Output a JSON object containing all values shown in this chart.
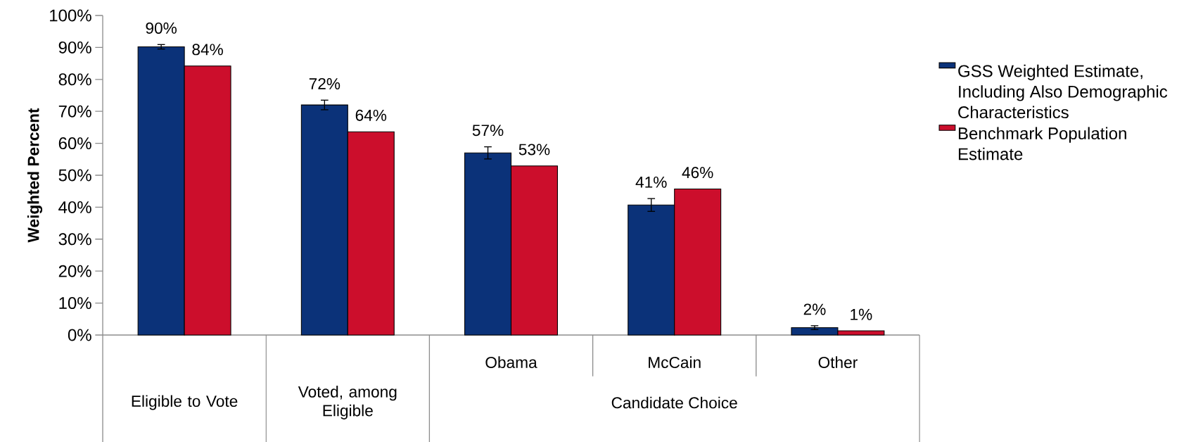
{
  "chart_data": {
    "type": "bar",
    "ylabel": "Weighted Percent",
    "categories": [
      "Eligible to Vote",
      "Voted, among Eligible",
      "Obama",
      "McCain",
      "Other"
    ],
    "annotations": [
      "Candidate Choice"
    ],
    "series": [
      {
        "name": "GSS Weighted Estimate, Including Also Demographic Characteristics",
        "color": "#0b3279",
        "values": [
          90.2,
          72.0,
          57.0,
          40.7,
          2.3
        ],
        "errors": [
          0.7,
          1.5,
          1.9,
          2.0,
          0.6
        ],
        "value_labels": [
          "90%",
          "72%",
          "57%",
          "41%",
          "2%"
        ]
      },
      {
        "name": "Benchmark Population Estimate",
        "color": "#cc0e2c",
        "values": [
          84.2,
          63.6,
          52.9,
          45.7,
          1.3
        ],
        "value_labels": [
          "84%",
          "64%",
          "53%",
          "46%",
          "1%"
        ]
      }
    ],
    "ylim": [
      0,
      100
    ],
    "yticks": [
      {
        "value": 0,
        "label": "0%"
      },
      {
        "value": 10,
        "label": "10%"
      },
      {
        "value": 20,
        "label": "20%"
      },
      {
        "value": 30,
        "label": "30%"
      },
      {
        "value": 40,
        "label": "40%"
      },
      {
        "value": 50,
        "label": "50%"
      },
      {
        "value": 60,
        "label": "60%"
      },
      {
        "value": 70,
        "label": "70%"
      },
      {
        "value": 80,
        "label": "80%"
      },
      {
        "value": 90,
        "label": "90%"
      },
      {
        "value": 100,
        "label": "100%"
      }
    ],
    "grid": false,
    "legend": "right"
  }
}
